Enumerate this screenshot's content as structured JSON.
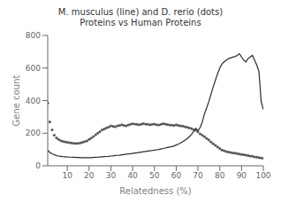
{
  "chart_data": {
    "type": "line",
    "title": "M. musculus (line) and D. rerio (dots)\nProteins vs Human Proteins",
    "xlabel": "Relatedness (%)",
    "ylabel": "Gene count",
    "xlim": [
      1,
      100
    ],
    "ylim": [
      0,
      800
    ],
    "xticks": [
      10,
      20,
      30,
      40,
      50,
      60,
      70,
      80,
      90,
      100
    ],
    "yticks": [
      0,
      200,
      400,
      600,
      800
    ],
    "grid": false,
    "x": [
      1,
      2,
      3,
      4,
      5,
      6,
      7,
      8,
      9,
      10,
      11,
      12,
      13,
      14,
      15,
      16,
      17,
      18,
      19,
      20,
      21,
      22,
      23,
      24,
      25,
      26,
      27,
      28,
      29,
      30,
      31,
      32,
      33,
      34,
      35,
      36,
      37,
      38,
      39,
      40,
      41,
      42,
      43,
      44,
      45,
      46,
      47,
      48,
      49,
      50,
      51,
      52,
      53,
      54,
      55,
      56,
      57,
      58,
      59,
      60,
      61,
      62,
      63,
      64,
      65,
      66,
      67,
      68,
      69,
      70,
      71,
      72,
      73,
      74,
      75,
      76,
      77,
      78,
      79,
      80,
      81,
      82,
      83,
      84,
      85,
      86,
      87,
      88,
      89,
      90,
      91,
      92,
      93,
      94,
      95,
      96,
      97,
      98,
      99,
      100
    ],
    "series": [
      {
        "color": "#2a2a2a",
        "line_style": "solid",
        "marker": "none",
        "values": [
          95,
          82,
          73,
          68,
          62,
          60,
          58,
          56,
          55,
          54,
          53,
          53,
          52,
          51,
          51,
          50,
          50,
          50,
          50,
          50,
          50,
          51,
          52,
          53,
          54,
          55,
          56,
          57,
          58,
          60,
          61,
          63,
          64,
          65,
          67,
          69,
          71,
          73,
          74,
          76,
          78,
          80,
          82,
          84,
          86,
          88,
          90,
          92,
          94,
          96,
          98,
          100,
          103,
          106,
          109,
          112,
          115,
          118,
          122,
          127,
          133,
          140,
          148,
          156,
          166,
          178,
          192,
          210,
          230,
          215,
          235,
          270,
          320,
          355,
          395,
          440,
          485,
          525,
          565,
          600,
          625,
          638,
          648,
          658,
          662,
          667,
          670,
          678,
          688,
          668,
          648,
          638,
          658,
          668,
          678,
          648,
          618,
          578,
          395,
          345
        ]
      },
      {
        "color": "#555555",
        "line_style": "none",
        "marker": "dot",
        "values": [
          385,
          270,
          220,
          188,
          172,
          162,
          154,
          150,
          147,
          144,
          142,
          140,
          138,
          137,
          137,
          140,
          144,
          148,
          153,
          162,
          170,
          180,
          190,
          200,
          210,
          220,
          226,
          232,
          238,
          245,
          242,
          240,
          245,
          248,
          252,
          248,
          245,
          250,
          254,
          258,
          256,
          254,
          252,
          256,
          258,
          256,
          254,
          252,
          254,
          256,
          252,
          250,
          254,
          258,
          256,
          253,
          251,
          249,
          247,
          252,
          248,
          245,
          243,
          240,
          237,
          232,
          228,
          222,
          218,
          208,
          196,
          188,
          178,
          168,
          158,
          145,
          135,
          125,
          116,
          106,
          97,
          92,
          87,
          84,
          82,
          79,
          77,
          75,
          72,
          70,
          68,
          65,
          62,
          60,
          58,
          55,
          53,
          50,
          48,
          46
        ]
      }
    ]
  }
}
